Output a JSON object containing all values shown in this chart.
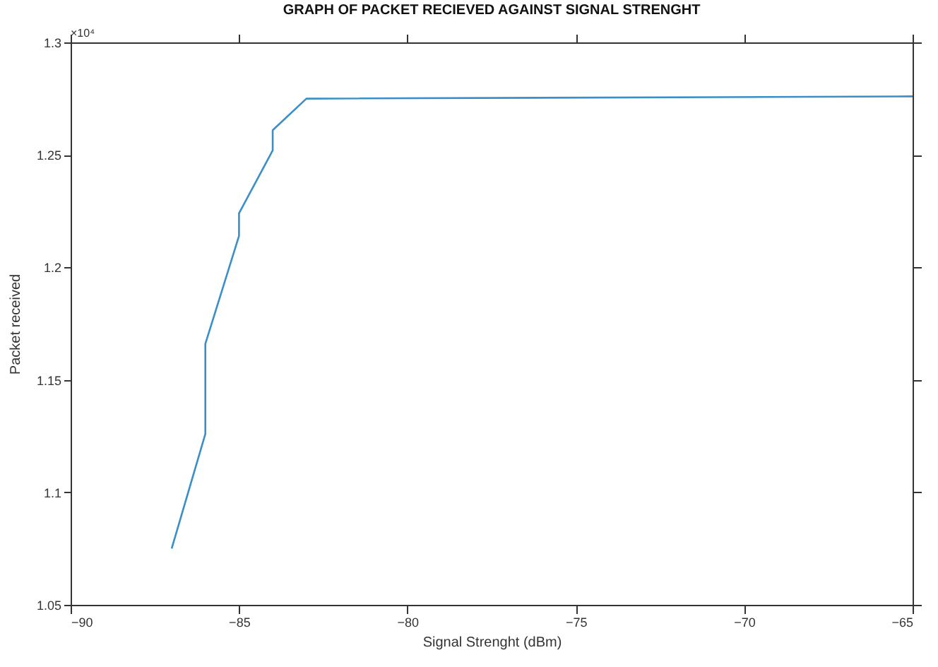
{
  "chart_data": {
    "type": "line",
    "title": "GRAPH OF PACKET RECIEVED AGAINST SIGNAL STRENGHT",
    "xlabel": "Signal Strenght (dBm)",
    "ylabel": "Packet received",
    "annotations": [
      "×10⁴"
    ],
    "series": [
      {
        "color": "#3a8fc8",
        "x": [
          -87,
          -86,
          -86,
          -85,
          -85,
          -84,
          -84,
          -83,
          -65
        ],
        "values": [
          1.075,
          1.126,
          1.166,
          1.214,
          1.224,
          1.252,
          1.261,
          1.275,
          1.276
        ]
      }
    ],
    "xlim": [
      -90,
      -65
    ],
    "xticks": [
      -90,
      -85,
      -80,
      -75,
      -70,
      -65
    ],
    "ylim": [
      1.05,
      1.3
    ],
    "yticks": [
      1.05,
      1.1,
      1.15,
      1.2,
      1.25,
      1.3
    ],
    "grid": false,
    "marker": "none",
    "line_style": "solid"
  }
}
